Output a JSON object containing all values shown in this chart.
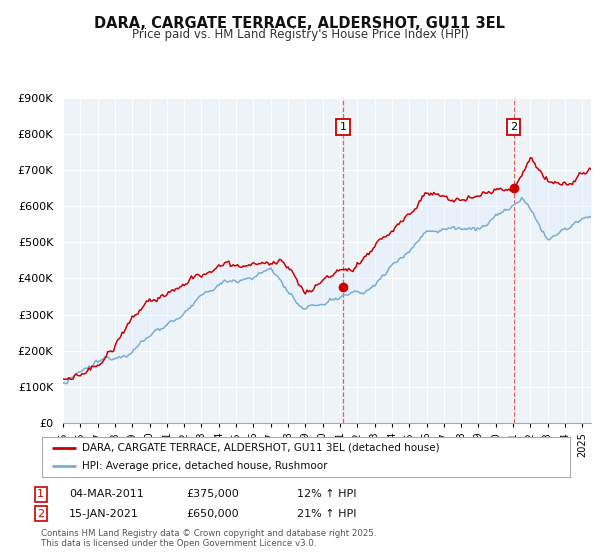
{
  "title": "DARA, CARGATE TERRACE, ALDERSHOT, GU11 3EL",
  "subtitle": "Price paid vs. HM Land Registry's House Price Index (HPI)",
  "legend_line1": "DARA, CARGATE TERRACE, ALDERSHOT, GU11 3EL (detached house)",
  "legend_line2": "HPI: Average price, detached house, Rushmoor",
  "footnote1": "Contains HM Land Registry data © Crown copyright and database right 2025.",
  "footnote2": "This data is licensed under the Open Government Licence v3.0.",
  "marker1_date": "04-MAR-2011",
  "marker1_price": 375000,
  "marker1_label": "12% ↑ HPI",
  "marker1_x": 2011.17,
  "marker2_date": "15-JAN-2021",
  "marker2_price": 650000,
  "marker2_label": "21% ↑ HPI",
  "marker2_x": 2021.04,
  "red_color": "#cc0000",
  "blue_color": "#7aadd4",
  "blue_fill_color": "#ddeeff",
  "bg_color": "#ffffff",
  "plot_bg_color": "#eef3f8",
  "grid_color": "#ffffff",
  "vline_color": "#e06060",
  "xmin": 1995,
  "xmax": 2025.5,
  "ymin": 0,
  "ymax": 900000,
  "yticks": [
    0,
    100000,
    200000,
    300000,
    400000,
    500000,
    600000,
    700000,
    800000,
    900000
  ],
  "ytick_labels": [
    "£0",
    "£100K",
    "£200K",
    "£300K",
    "£400K",
    "£500K",
    "£600K",
    "£700K",
    "£800K",
    "£900K"
  ]
}
